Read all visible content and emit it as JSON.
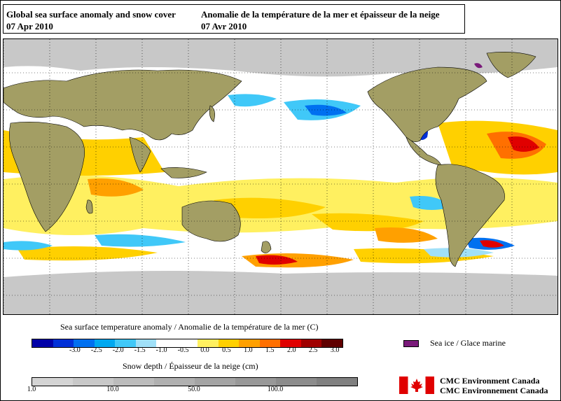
{
  "title": {
    "en_line1": "Global sea surface anomaly and snow cover",
    "en_line2": "07 Apr 2010",
    "fr_line1": "Anomalie de la température de la mer et épaisseur de la neige",
    "fr_line2": "07 Avr 2010"
  },
  "legend": {
    "sst_label": "Sea surface temperature anomaly / Anomalie de la température de la mer (C)",
    "sst_ticks": [
      "-3.0",
      "-2.5",
      "-2.0",
      "-1.5",
      "-1.0",
      "-0.5",
      "0.0",
      "0.5",
      "1.0",
      "1.5",
      "2.0",
      "2.5",
      "3.0"
    ],
    "sst_colors": [
      "#0000a8",
      "#0030d8",
      "#0070f0",
      "#00a8f0",
      "#40c8f8",
      "#a0e0f8",
      "#ffffff",
      "#ffffff",
      "#fff060",
      "#ffd000",
      "#ffa000",
      "#ff7000",
      "#e00000",
      "#a00000",
      "#600000"
    ],
    "snow_label": "Snow depth / Épaisseur de la neige (cm)",
    "snow_ticks": [
      "1.0",
      "10.0",
      "50.0",
      "100.0"
    ],
    "snow_colors": [
      "#d4d4d4",
      "#c8c8c8",
      "#bcbcbc",
      "#b0b0b0",
      "#a4a4a4",
      "#989898",
      "#8c8c8c",
      "#808080"
    ],
    "sea_ice_label": "Sea ice / Glace marine",
    "sea_ice_color": "#7a1a7a",
    "agency_line1": "CMC  Environment  Canada",
    "agency_line2": "CMC  Environnement  Canada"
  },
  "map": {
    "land_color": "#a39e64",
    "snow_color": "#c8c8c8",
    "grid_color": "#000000"
  }
}
